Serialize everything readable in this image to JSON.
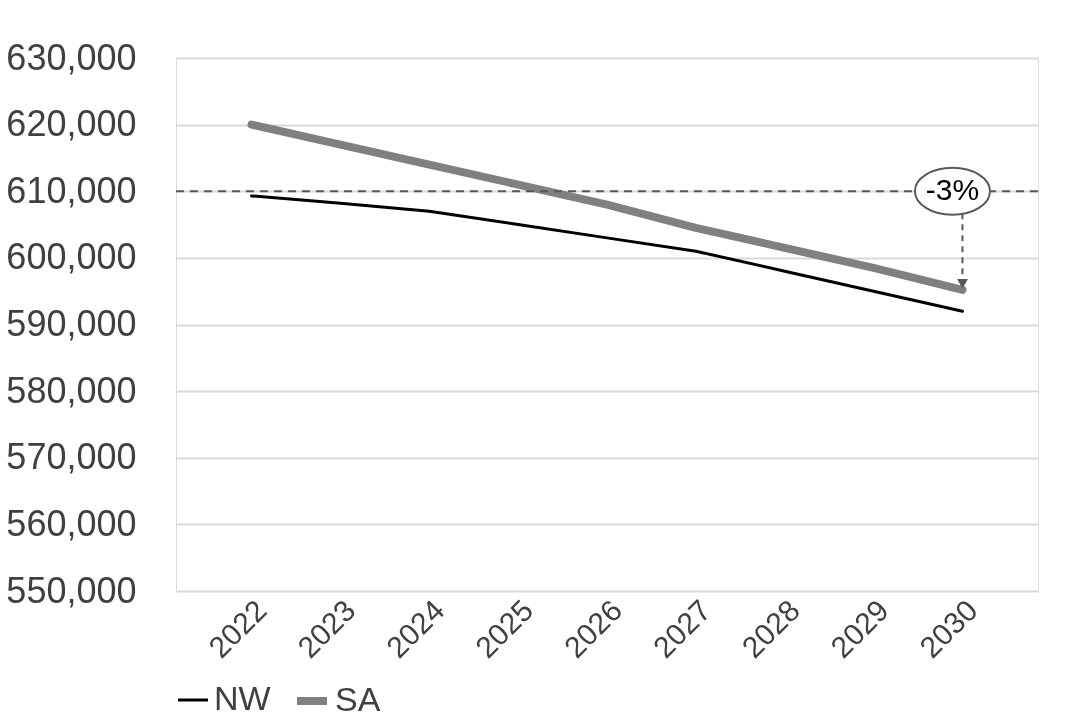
{
  "chart_data": {
    "type": "line",
    "categories": [
      "2022",
      "2023",
      "2024",
      "2025",
      "2026",
      "2027",
      "2028",
      "2029",
      "2030"
    ],
    "series": [
      {
        "name": "NW",
        "color": "#000000",
        "values": [
          609300,
          608200,
          607000,
          605000,
          603000,
          601000,
          598000,
          595000,
          592000
        ]
      },
      {
        "name": "SA",
        "color": "#808080",
        "values": [
          620000,
          617000,
          614000,
          611000,
          608000,
          604500,
          601500,
          598500,
          595200
        ]
      }
    ],
    "ylim": [
      550000,
      630000
    ],
    "yticks": [
      {
        "value": 550000,
        "label": "550,000"
      },
      {
        "value": 560000,
        "label": "560,000"
      },
      {
        "value": 570000,
        "label": "570,000"
      },
      {
        "value": 580000,
        "label": "580,000"
      },
      {
        "value": 590000,
        "label": "590,000"
      },
      {
        "value": 600000,
        "label": "600,000"
      },
      {
        "value": 610000,
        "label": "610,000"
      },
      {
        "value": 620000,
        "label": "620,000"
      },
      {
        "value": 630000,
        "label": "630,000"
      }
    ],
    "grid": "y",
    "legend": "bottom",
    "line_style": "solid",
    "marker": "none",
    "ref_lines": [
      {
        "axis": "y",
        "value": 610000,
        "color": "#595959",
        "line_style": "dashed"
      }
    ],
    "annotations": [
      {
        "text": "-3%",
        "x": "2030",
        "y": 610000
      }
    ]
  }
}
